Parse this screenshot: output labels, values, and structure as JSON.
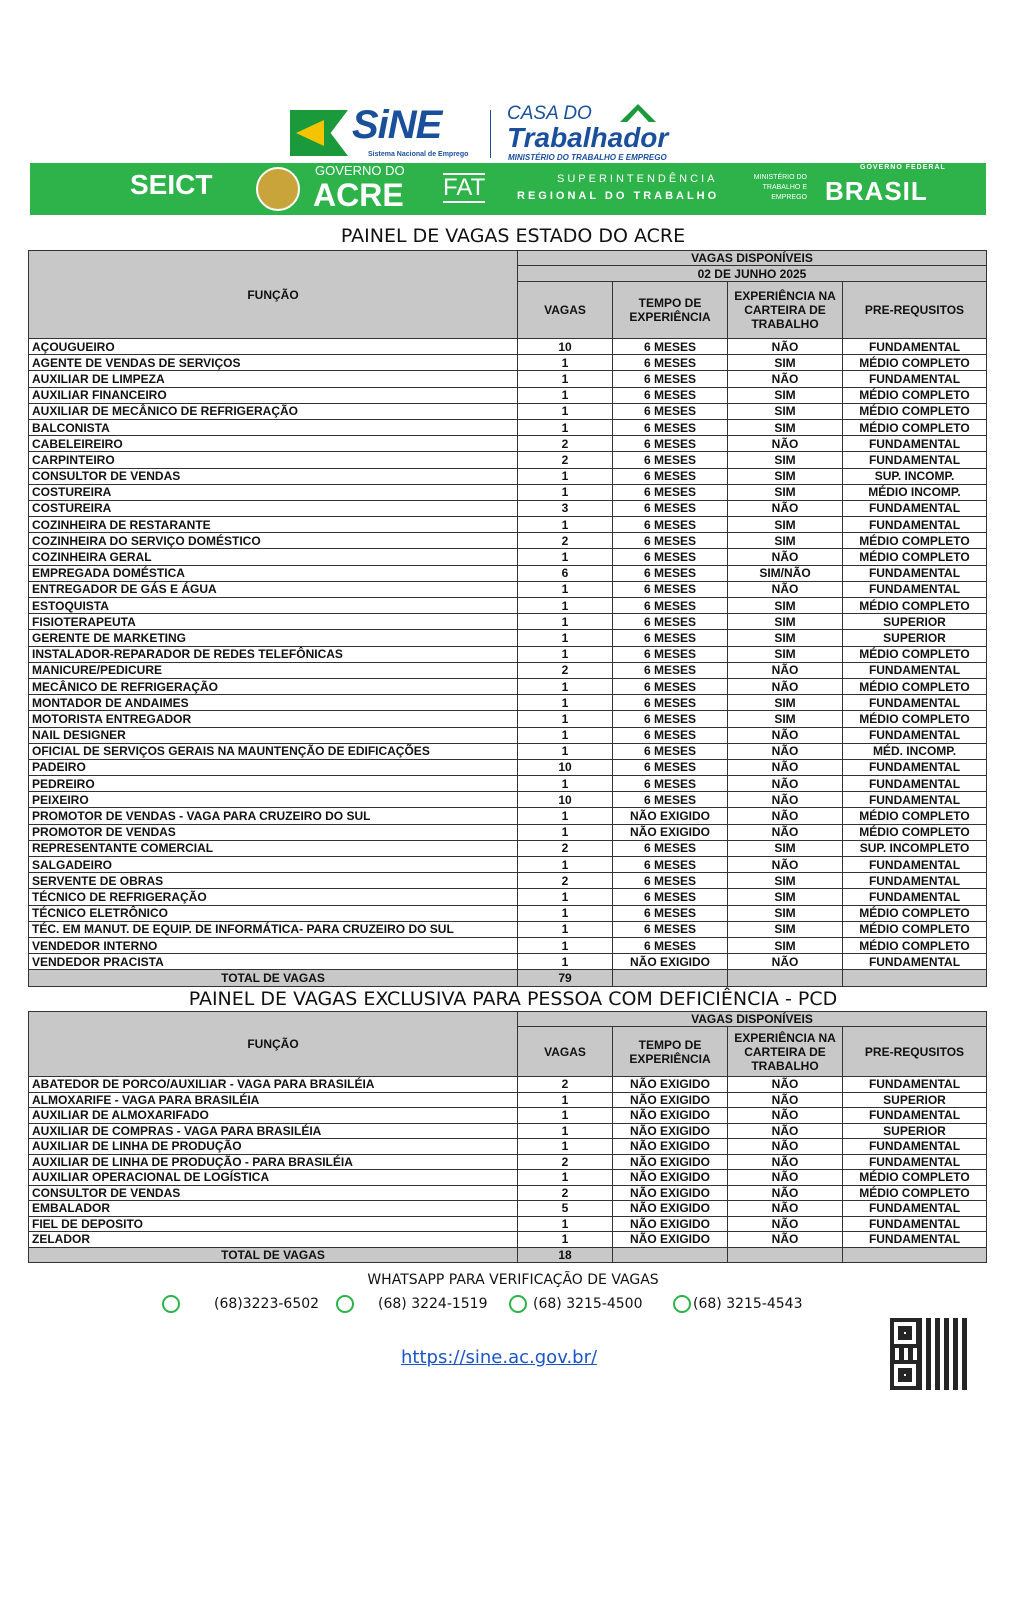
{
  "header": {
    "sine": "SiNE",
    "sine_sub": "Sistema Nacional de Emprego",
    "casa": "CASA DO",
    "trabalhador": "Trabalhador",
    "mte": "MINISTÉRIO DO TRABALHO E EMPREGO",
    "seict": "SEICT",
    "gov_acre_1": "GOVERNO DO",
    "gov_acre_2": "ACRE",
    "fat": "FAT",
    "sup_1": "SUPERINTENDÊNCIA",
    "sup_2": "REGIONAL DO TRABALHO",
    "min": "MINISTÉRIO DO TRABALHO E EMPREGO",
    "gov_fed": "GOVERNO FEDERAL",
    "brasil": "BRASIL",
    "band_color": "#2db34a"
  },
  "table1": {
    "title": "PAINEL DE VAGAS ESTADO DO ACRE",
    "vagas_disp": "VAGAS DISPONÍVEIS",
    "date": "02 DE JUNHO 2025",
    "cols": [
      "FUNÇÃO",
      "VAGAS",
      "TEMPO DE EXPERIÊNCIA",
      "EXPERIÊNCIA NA CARTEIRA DE TRABALHO",
      "PRE-REQUSITOS"
    ],
    "rows": [
      [
        "AÇOUGUEIRO",
        "10",
        "6 MESES",
        "NÃO",
        "FUNDAMENTAL"
      ],
      [
        "AGENTE DE VENDAS  DE SERVIÇOS",
        "1",
        "6 MESES",
        "SIM",
        "MÉDIO COMPLETO"
      ],
      [
        "AUXILIAR DE LIMPEZA",
        "1",
        "6 MESES",
        "NÃO",
        "FUNDAMENTAL"
      ],
      [
        "AUXILIAR FINANCEIRO",
        "1",
        "6 MESES",
        "SIM",
        "MÉDIO COMPLETO"
      ],
      [
        "AUXILIAR DE MECÂNICO DE REFRIGERAÇÃO",
        "1",
        "6 MESES",
        "SIM",
        "MÉDIO COMPLETO"
      ],
      [
        "BALCONISTA",
        "1",
        "6 MESES",
        "SIM",
        "MÉDIO COMPLETO"
      ],
      [
        "CABELEIREIRO",
        "2",
        "6 MESES",
        "NÃO",
        "FUNDAMENTAL"
      ],
      [
        "CARPINTEIRO",
        "2",
        "6 MESES",
        "SIM",
        "FUNDAMENTAL"
      ],
      [
        "CONSULTOR DE VENDAS",
        "1",
        "6 MESES",
        "SIM",
        "SUP. INCOMP."
      ],
      [
        "COSTUREIRA",
        "1",
        "6 MESES",
        "SIM",
        "MÉDIO INCOMP."
      ],
      [
        "COSTUREIRA",
        "3",
        "6 MESES",
        "NÃO",
        "FUNDAMENTAL"
      ],
      [
        "COZINHEIRA DE RESTARANTE",
        "1",
        "6 MESES",
        "SIM",
        "FUNDAMENTAL"
      ],
      [
        "COZINHEIRA DO SERVIÇO DOMÉSTICO",
        "2",
        "6 MESES",
        "SIM",
        "MÉDIO COMPLETO"
      ],
      [
        "COZINHEIRA GERAL",
        "1",
        "6 MESES",
        "NÃO",
        "MÉDIO COMPLETO"
      ],
      [
        "EMPREGADA DOMÉSTICA",
        "6",
        "6 MESES",
        "SIM/NÃO",
        "FUNDAMENTAL"
      ],
      [
        "ENTREGADOR DE GÁS E ÁGUA",
        "1",
        "6 MESES",
        "NÃO",
        "FUNDAMENTAL"
      ],
      [
        "ESTOQUISTA",
        "1",
        "6 MESES",
        "SIM",
        "MÉDIO COMPLETO"
      ],
      [
        "FISIOTERAPEUTA",
        "1",
        "6 MESES",
        "SIM",
        "SUPERIOR"
      ],
      [
        "GERENTE DE MARKETING",
        "1",
        "6 MESES",
        "SIM",
        "SUPERIOR"
      ],
      [
        "INSTALADOR-REPARADOR DE REDES TELEFÔNICAS",
        "1",
        "6 MESES",
        "SIM",
        "MÉDIO COMPLETO"
      ],
      [
        "MANICURE/PEDICURE",
        "2",
        "6 MESES",
        "NÃO",
        "FUNDAMENTAL"
      ],
      [
        "MECÂNICO DE REFRIGERAÇÃO",
        "1",
        "6 MESES",
        "NÃO",
        "MÉDIO COMPLETO"
      ],
      [
        "MONTADOR DE ANDAIMES",
        "1",
        "6 MESES",
        "SIM",
        "FUNDAMENTAL"
      ],
      [
        "MOTORISTA ENTREGADOR",
        "1",
        "6 MESES",
        "SIM",
        "MÉDIO COMPLETO"
      ],
      [
        "NAIL DESIGNER",
        "1",
        "6 MESES",
        "NÃO",
        "FUNDAMENTAL"
      ],
      [
        "OFICIAL DE SERVIÇOS  GERAIS NA MAUNTENÇÃO DE EDIFICAÇÕES",
        "1",
        "6 MESES",
        "NÃO",
        "MÉD. INCOMP."
      ],
      [
        "PADEIRO",
        "10",
        "6 MESES",
        "NÃO",
        "FUNDAMENTAL"
      ],
      [
        "PEDREIRO",
        "1",
        "6 MESES",
        "NÃO",
        "FUNDAMENTAL"
      ],
      [
        "PEIXEIRO",
        "10",
        "6 MESES",
        "NÃO",
        "FUNDAMENTAL"
      ],
      [
        "PROMOTOR DE VENDAS - VAGA PARA CRUZEIRO DO SUL",
        "1",
        "NÃO EXIGIDO",
        "NÃO",
        "MÉDIO COMPLETO"
      ],
      [
        "PROMOTOR DE VENDAS",
        "1",
        "NÃO EXIGIDO",
        "NÃO",
        "MÉDIO COMPLETO"
      ],
      [
        "REPRESENTANTE COMERCIAL",
        "2",
        "6 MESES",
        "SIM",
        "SUP. INCOMPLETO"
      ],
      [
        "SALGADEIRO",
        "1",
        "6 MESES",
        "NÃO",
        "FUNDAMENTAL"
      ],
      [
        "SERVENTE DE OBRAS",
        "2",
        "6 MESES",
        "SIM",
        "FUNDAMENTAL"
      ],
      [
        "TÉCNICO DE REFRIGERAÇÃO",
        "1",
        "6 MESES",
        "SIM",
        "FUNDAMENTAL"
      ],
      [
        "TÉCNICO ELETRÔNICO",
        "1",
        "6 MESES",
        "SIM",
        "MÉDIO COMPLETO"
      ],
      [
        "TÉC. EM MANUT. DE EQUIP. DE INFORMÁTICA- PARA CRUZEIRO DO SUL",
        "1",
        "6 MESES",
        "SIM",
        "MÉDIO COMPLETO"
      ],
      [
        "VENDEDOR INTERNO",
        "1",
        "6 MESES",
        "SIM",
        "MÉDIO COMPLETO"
      ],
      [
        "VENDEDOR PRACISTA",
        "1",
        "NÃO EXIGIDO",
        "NÃO",
        "FUNDAMENTAL"
      ]
    ],
    "total_label": "TOTAL DE VAGAS",
    "total": "79"
  },
  "table2": {
    "title": "PAINEL DE VAGAS EXCLUSIVA PARA PESSOA COM DEFICIÊNCIA - PCD",
    "vagas_disp": "VAGAS DISPONÍVEIS",
    "cols": [
      "FUNÇÃO",
      "VAGAS",
      "TEMPO DE EXPERIÊNCIA",
      "EXPERIÊNCIA NA CARTEIRA DE TRABALHO",
      "PRE-REQUSITOS"
    ],
    "rows": [
      [
        "ABATEDOR DE PORCO/AUXILIAR - VAGA PARA BRASILÉIA",
        "2",
        "NÃO EXIGIDO",
        "NÃO",
        "FUNDAMENTAL"
      ],
      [
        "ALMOXARIFE - VAGA PARA BRASILÉIA",
        "1",
        "NÃO EXIGIDO",
        "NÃO",
        "SUPERIOR"
      ],
      [
        "AUXILIAR DE ALMOXARIFADO",
        "1",
        "NÃO EXIGIDO",
        "NÃO",
        "FUNDAMENTAL"
      ],
      [
        "AUXILIAR DE COMPRAS - VAGA PARA BRASILÉIA",
        "1",
        "NÃO EXIGIDO",
        "NÃO",
        "SUPERIOR"
      ],
      [
        "AUXILIAR DE LINHA DE PRODUÇÃO",
        "1",
        "NÃO EXIGIDO",
        "NÃO",
        "FUNDAMENTAL"
      ],
      [
        "AUXILIAR DE LINHA DE PRODUÇÃO -  PARA BRASILÉIA",
        "2",
        "NÃO EXIGIDO",
        "NÃO",
        "FUNDAMENTAL"
      ],
      [
        "AUXILIAR OPERACIONAL DE LOGÍSTICA",
        "1",
        "NÃO EXIGIDO",
        "NÃO",
        "MÉDIO COMPLETO"
      ],
      [
        "CONSULTOR DE VENDAS",
        "2",
        "NÃO EXIGIDO",
        "NÃO",
        "MÉDIO COMPLETO"
      ],
      [
        "EMBALADOR",
        "5",
        "NÃO EXIGIDO",
        "NÃO",
        "FUNDAMENTAL"
      ],
      [
        "FIEL DE DEPOSITO",
        "1",
        "NÃO  EXIGIDO",
        "NÃO",
        "FUNDAMENTAL"
      ],
      [
        "ZELADOR",
        "1",
        "NÃO EXIGIDO",
        "NÃO",
        "FUNDAMENTAL"
      ]
    ],
    "total_label": "TOTAL DE VAGAS",
    "total": "18"
  },
  "footer": {
    "whatsapp_title": "WHATSAPP PARA VERIFICAÇÃO DE VAGAS",
    "icon": "whatsapp-icon",
    "phones": [
      "(68)3223-6502",
      "(68) 3224-1519",
      "(68) 3215-4500",
      "(68) 3215-4543"
    ],
    "url": "https://sine.ac.gov.br/"
  }
}
